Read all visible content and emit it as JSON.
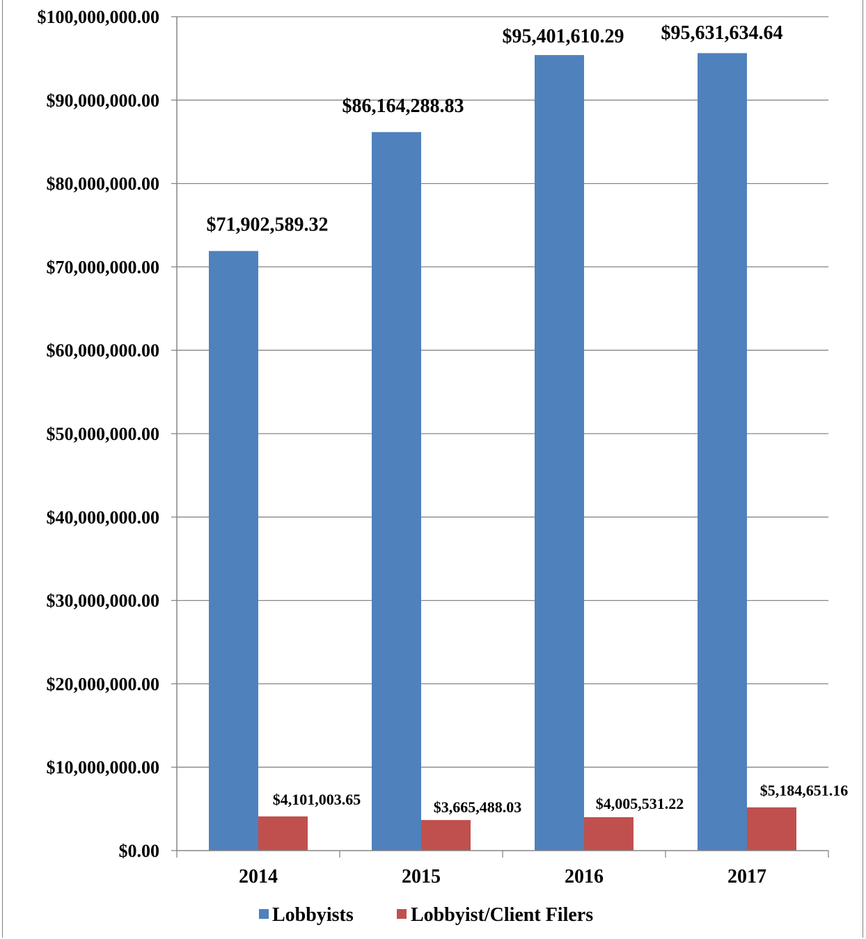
{
  "chart_data": {
    "type": "bar",
    "categories": [
      "2014",
      "2015",
      "2016",
      "2017"
    ],
    "series": [
      {
        "name": "Lobbyists",
        "color": "#4f81bd",
        "values": [
          71902589.32,
          86164288.83,
          95401610.29,
          95631634.64
        ],
        "labels": [
          "$71,902,589.32",
          "$86,164,288.83",
          "$95,401,610.29",
          "$95,631,634.64"
        ]
      },
      {
        "name": "Lobbyist/Client Filers",
        "color": "#c0504d",
        "values": [
          4101003.65,
          3665488.03,
          4005531.22,
          5184651.16
        ],
        "labels": [
          "$4,101,003.65",
          "$3,665,488.03",
          "$4,005,531.22",
          "$5,184,651.16"
        ]
      }
    ],
    "ylim": [
      0,
      100000000
    ],
    "yticks": [
      0,
      10000000,
      20000000,
      30000000,
      40000000,
      50000000,
      60000000,
      70000000,
      80000000,
      90000000,
      100000000
    ],
    "ytick_labels": [
      "$0.00",
      "$10,000,000.00",
      "$20,000,000.00",
      "$30,000,000.00",
      "$40,000,000.00",
      "$50,000,000.00",
      "$60,000,000.00",
      "$70,000,000.00",
      "$80,000,000.00",
      "$90,000,000.00",
      "$100,000,000.00"
    ],
    "grid": true,
    "legend_position": "bottom",
    "title": "",
    "xlabel": "",
    "ylabel": ""
  }
}
